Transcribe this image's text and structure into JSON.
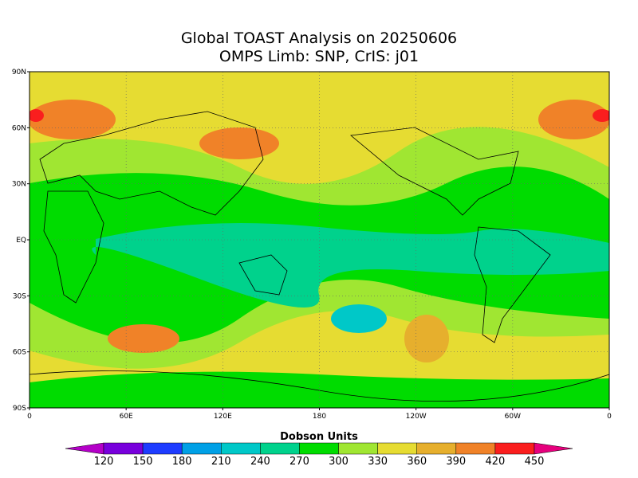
{
  "title": [
    "Global TOAST Analysis on 20250606",
    "OMPS Limb: SNP,  CrIS: j01"
  ],
  "map": {
    "lat_labels": [
      "90N",
      "60N",
      "30N",
      "EQ",
      "30S",
      "60S",
      "90S"
    ],
    "lon_labels": [
      "0",
      "60E",
      "120E",
      "180",
      "120W",
      "60W",
      "0"
    ]
  },
  "colorbar": {
    "label": "Dobson Units",
    "levels": [
      120,
      150,
      180,
      210,
      240,
      270,
      300,
      330,
      360,
      390,
      420,
      450
    ],
    "colors": [
      "#b400c8",
      "#7800dc",
      "#1e3cff",
      "#00a0e6",
      "#00c8c8",
      "#00d28c",
      "#00dc00",
      "#a0e632",
      "#e6dc32",
      "#e6af2d",
      "#f08228",
      "#fa1e1e",
      "#e6007d"
    ]
  }
}
